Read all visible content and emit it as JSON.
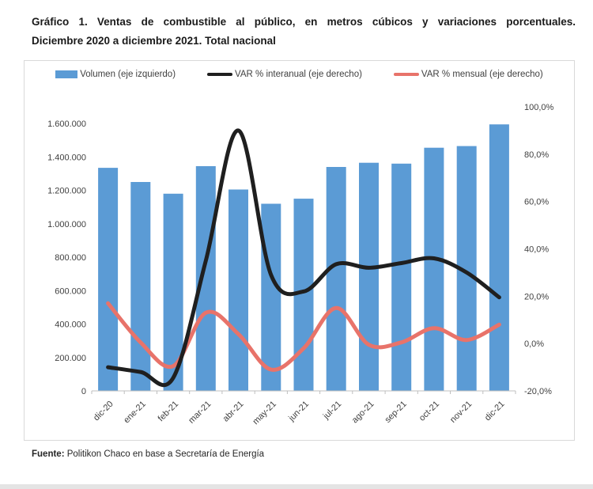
{
  "title": {
    "line1": "Gráfico 1. Ventas de combustible al público, en metros cúbicos y variaciones porcentuales.",
    "line2": "Diciembre 2020 a diciembre 2021. Total nacional"
  },
  "footer": {
    "source_label": "Fuente:",
    "source_text": "Politikon Chaco en base a Secretaría de Energía"
  },
  "chart_data": {
    "type": "combo",
    "title": "Ventas de combustible al público, en metros cúbicos y variaciones porcentuales. Diciembre 2020 a diciembre 2021. Total nacional",
    "categories": [
      "dic-20",
      "ene-21",
      "feb-21",
      "mar-21",
      "abr-21",
      "may-21",
      "jun-21",
      "jul-21",
      "ago-21",
      "sep-21",
      "oct-21",
      "nov-21",
      "dic-21"
    ],
    "series": [
      {
        "name": "Volumen (eje izquierdo)",
        "type": "bar",
        "axis": "left",
        "color": "#5B9BD5",
        "values": [
          1335000,
          1250000,
          1180000,
          1345000,
          1205000,
          1120000,
          1150000,
          1340000,
          1365000,
          1360000,
          1455000,
          1465000,
          1595000
        ]
      },
      {
        "name": "VAR % interanual (eje derecho)",
        "type": "line",
        "axis": "right",
        "color": "#1f1f1f",
        "values": [
          -10,
          -12,
          -14.5,
          35,
          90,
          29,
          22,
          33.5,
          32,
          34,
          36,
          30,
          19.5
        ]
      },
      {
        "name": "VAR % mensual (eje derecho)",
        "type": "line",
        "axis": "right",
        "color": "#E8736A",
        "values": [
          17,
          0.5,
          -9.5,
          13,
          4,
          -11,
          -2,
          15,
          -0.5,
          0.5,
          6.5,
          1.5,
          8
        ]
      }
    ],
    "left_axis": {
      "min": 0,
      "max": 1700000,
      "tick_step": 200000,
      "tick_values": [
        0,
        200000,
        400000,
        600000,
        800000,
        1000000,
        1200000,
        1400000,
        1600000
      ],
      "tick_labels": [
        "0",
        "200.000",
        "400.000",
        "600.000",
        "800.000",
        "1.000.000",
        "1.200.000",
        "1.400.000",
        "1.600.000"
      ]
    },
    "right_axis": {
      "min": -20,
      "max": 100,
      "tick_step": 20,
      "tick_values": [
        -20,
        0,
        20,
        40,
        60,
        80,
        100
      ],
      "tick_labels": [
        "-20,0%",
        "0,0%",
        "20,0%",
        "40,0%",
        "60,0%",
        "80,0%",
        "100,0%"
      ]
    },
    "grid": false,
    "legend_position": "top",
    "axis_line_color": "#BFBFBF"
  }
}
